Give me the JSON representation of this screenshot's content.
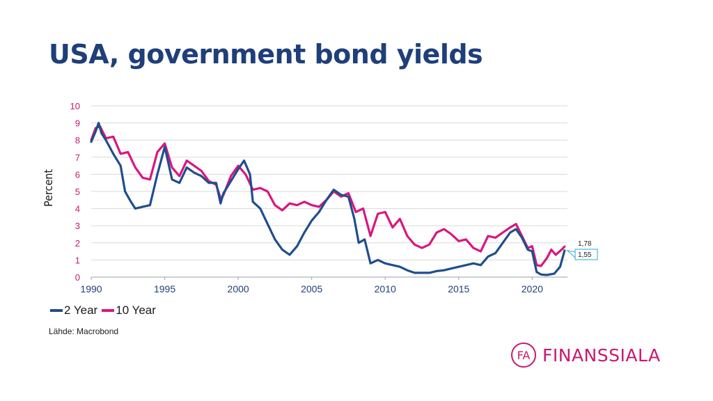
{
  "header": {
    "title": "USA, government bond yields"
  },
  "source": "Lähde: Macrobond",
  "logo": {
    "mark": "FA",
    "name": "FINANSSIALA"
  },
  "colors": {
    "two_year": "#1f4e8c",
    "ten_year": "#d9167f",
    "title": "#1f3f7a",
    "brand": "#c8196e"
  },
  "chart_data": {
    "type": "line",
    "ylabel": "Percent",
    "ylim": [
      0,
      10
    ],
    "y_ticks": [
      "0",
      "1",
      "2",
      "3",
      "4",
      "5",
      "6",
      "7",
      "8",
      "9",
      "10"
    ],
    "xlim": [
      1990,
      2022.4
    ],
    "x_ticks": [
      "1990",
      "1995",
      "2000",
      "2005",
      "2010",
      "2015",
      "2020"
    ],
    "grid": true,
    "legend_position": "bottom-left",
    "series": [
      {
        "name": "2 Year",
        "color": "#1f4e8c",
        "last_value_label": "1,55",
        "x": [
          1990.0,
          1990.3,
          1990.5,
          1990.7,
          1991.0,
          1991.5,
          1992.0,
          1992.3,
          1992.7,
          1993.0,
          1993.5,
          1994.0,
          1994.5,
          1995.0,
          1995.5,
          1996.0,
          1996.5,
          1997.0,
          1997.5,
          1998.0,
          1998.5,
          1998.8,
          1999.0,
          1999.5,
          2000.0,
          2000.4,
          2000.8,
          2001.0,
          2001.5,
          2002.0,
          2002.5,
          2003.0,
          2003.5,
          2004.0,
          2004.5,
          2005.0,
          2005.5,
          2006.0,
          2006.5,
          2007.0,
          2007.5,
          2007.9,
          2008.2,
          2008.6,
          2009.0,
          2009.5,
          2010.0,
          2010.5,
          2011.0,
          2011.5,
          2012.0,
          2012.5,
          2013.0,
          2013.5,
          2014.0,
          2014.5,
          2015.0,
          2015.5,
          2016.0,
          2016.5,
          2017.0,
          2017.5,
          2018.0,
          2018.5,
          2018.9,
          2019.3,
          2019.7,
          2020.0,
          2020.3,
          2020.6,
          2021.0,
          2021.5,
          2021.9,
          2022.2
        ],
        "values": [
          7.9,
          8.5,
          9.0,
          8.4,
          8.0,
          7.2,
          6.5,
          5.0,
          4.4,
          4.0,
          4.1,
          4.2,
          6.0,
          7.6,
          5.7,
          5.5,
          6.4,
          6.1,
          5.9,
          5.5,
          5.5,
          4.3,
          4.9,
          5.6,
          6.3,
          6.8,
          6.0,
          4.4,
          4.0,
          3.1,
          2.2,
          1.6,
          1.3,
          1.8,
          2.6,
          3.3,
          3.8,
          4.5,
          5.1,
          4.8,
          4.7,
          3.4,
          2.0,
          2.2,
          0.8,
          1.0,
          0.8,
          0.7,
          0.6,
          0.4,
          0.25,
          0.25,
          0.25,
          0.35,
          0.4,
          0.5,
          0.6,
          0.7,
          0.8,
          0.7,
          1.2,
          1.4,
          2.0,
          2.6,
          2.8,
          2.3,
          1.6,
          1.5,
          0.3,
          0.15,
          0.12,
          0.2,
          0.6,
          1.55
        ]
      },
      {
        "name": "10 Year",
        "color": "#d9167f",
        "last_value_label": "1,78",
        "x": [
          1990.0,
          1990.3,
          1990.6,
          1991.0,
          1991.5,
          1992.0,
          1992.5,
          1993.0,
          1993.5,
          1994.0,
          1994.5,
          1995.0,
          1995.5,
          1996.0,
          1996.5,
          1997.0,
          1997.5,
          1998.0,
          1998.5,
          1998.8,
          1999.0,
          1999.5,
          2000.0,
          2000.5,
          2001.0,
          2001.5,
          2002.0,
          2002.5,
          2003.0,
          2003.5,
          2004.0,
          2004.5,
          2005.0,
          2005.5,
          2006.0,
          2006.5,
          2007.0,
          2007.5,
          2008.0,
          2008.5,
          2009.0,
          2009.5,
          2010.0,
          2010.5,
          2011.0,
          2011.5,
          2012.0,
          2012.5,
          2013.0,
          2013.5,
          2014.0,
          2014.5,
          2015.0,
          2015.5,
          2016.0,
          2016.5,
          2017.0,
          2017.5,
          2018.0,
          2018.5,
          2018.9,
          2019.3,
          2019.7,
          2020.0,
          2020.3,
          2020.6,
          2021.0,
          2021.3,
          2021.6,
          2022.0,
          2022.2
        ],
        "values": [
          8.0,
          8.7,
          8.8,
          8.1,
          8.2,
          7.2,
          7.3,
          6.4,
          5.8,
          5.7,
          7.3,
          7.8,
          6.4,
          5.9,
          6.8,
          6.5,
          6.2,
          5.6,
          5.4,
          4.6,
          4.8,
          5.9,
          6.5,
          6.0,
          5.1,
          5.2,
          5.0,
          4.2,
          3.9,
          4.3,
          4.2,
          4.4,
          4.2,
          4.1,
          4.5,
          5.0,
          4.7,
          4.9,
          3.8,
          4.0,
          2.4,
          3.7,
          3.8,
          2.9,
          3.4,
          2.4,
          1.9,
          1.7,
          1.9,
          2.6,
          2.8,
          2.5,
          2.1,
          2.2,
          1.7,
          1.5,
          2.4,
          2.3,
          2.6,
          2.9,
          3.1,
          2.4,
          1.7,
          1.8,
          0.7,
          0.65,
          1.1,
          1.6,
          1.3,
          1.6,
          1.78
        ]
      }
    ]
  }
}
